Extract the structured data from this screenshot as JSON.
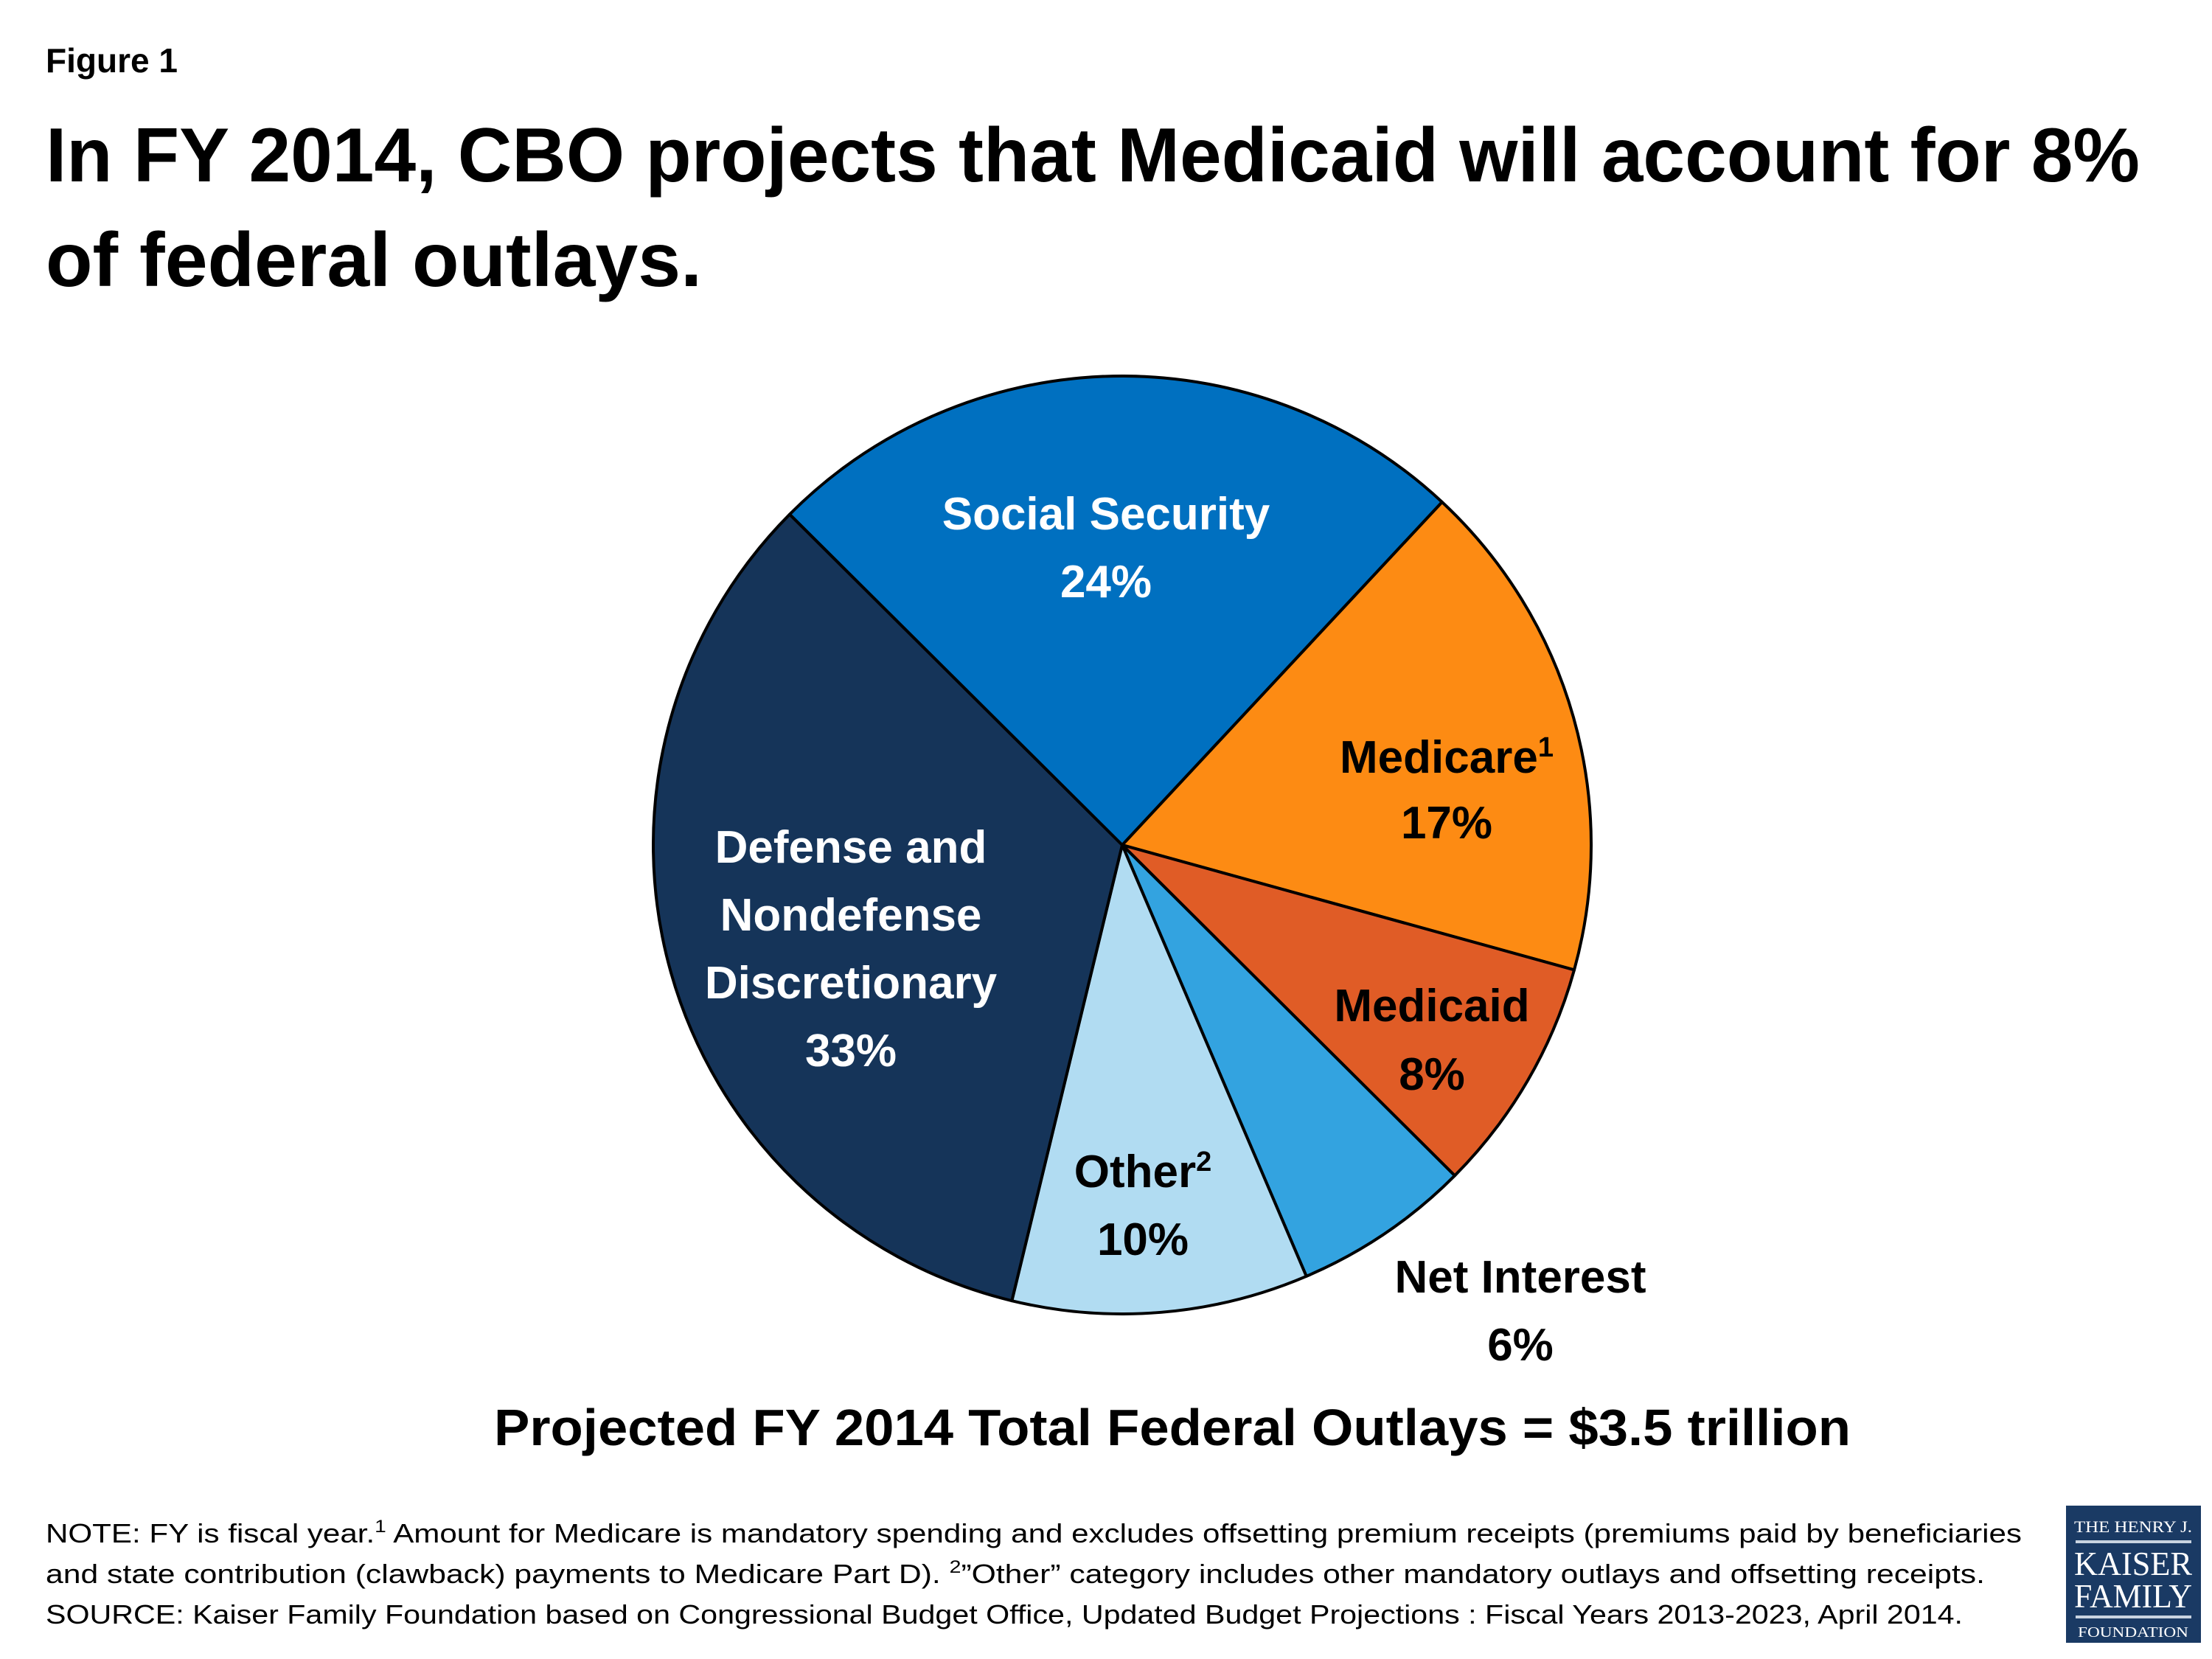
{
  "figure_label": "Figure 1",
  "title": {
    "line1": "In FY 2014, CBO projects that Medicaid will account for 8%",
    "line2": "of federal outlays."
  },
  "chart_data": {
    "type": "pie",
    "slices": [
      {
        "name": "Medicare",
        "sup": "1",
        "label": "17%",
        "value": 17,
        "color": "#fd8b13",
        "text_color": "#000000"
      },
      {
        "name": "Medicaid",
        "sup": "",
        "label": "8%",
        "value": 8,
        "color": "#e05c26",
        "text_color": "#000000"
      },
      {
        "name": "Net Interest",
        "sup": "",
        "label": "6%",
        "value": 6,
        "color": "#33a3e0",
        "text_color": "#000000"
      },
      {
        "name": "Other",
        "sup": "2",
        "label": "10%",
        "value": 10,
        "color": "#b1dcf2",
        "text_color": "#000000"
      },
      {
        "name_lines": [
          "Defense and",
          "Nondefense",
          "Discretionary"
        ],
        "name": "Defense and Nondefense Discretionary",
        "sup": "",
        "label": "33%",
        "value": 33,
        "color": "#153459",
        "text_color": "#ffffff"
      },
      {
        "name": "Social Security",
        "sup": "",
        "label": "24%",
        "value": 24,
        "color": "#0070c0",
        "text_color": "#ffffff"
      }
    ],
    "subtitle": "Projected FY 2014 Total Federal Outlays = $3.5 trillion"
  },
  "notes": {
    "line1_a": "NOTE: FY is fiscal year.",
    "line1_sup": "1",
    "line1_b": " Amount for Medicare is mandatory spending and excludes offsetting premium receipts (premiums paid by beneficiaries",
    "line2_a": "and state contribution (clawback) payments to Medicare Part D). ",
    "line2_sup": "2",
    "line2_b": "”Other” category includes other mandatory outlays and offsetting receipts.",
    "line3": "SOURCE:  Kaiser Family Foundation based on Congressional Budget Office, Updated Budget Projections : Fiscal Years 2013-2023,  April 2014."
  },
  "logo": {
    "line1": "THE HENRY J.",
    "line2": "KAISER",
    "line3": "FAMILY",
    "line4": "FOUNDATION",
    "color": "#1a3a64"
  }
}
